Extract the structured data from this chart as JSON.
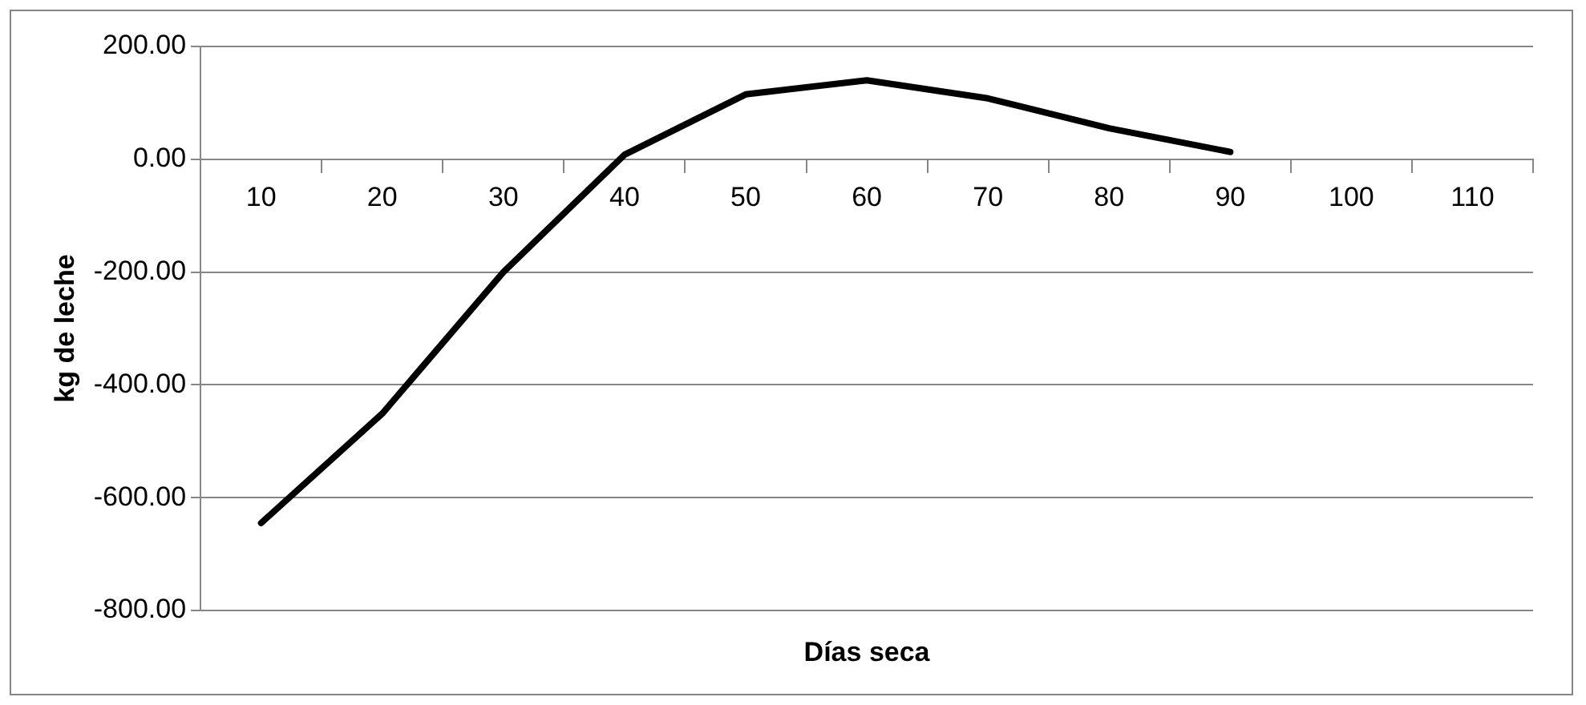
{
  "chart_data": {
    "type": "line",
    "xlabel": "Días seca",
    "ylabel": "kg de leche",
    "categories": [
      "10",
      "20",
      "30",
      "40",
      "50",
      "60",
      "70",
      "80",
      "90",
      "100",
      "110"
    ],
    "series": [
      {
        "color": "#000000",
        "values": [
          -645,
          -451,
          -200,
          8,
          115,
          140,
          108,
          55,
          13,
          null,
          null
        ]
      }
    ],
    "ylim": [
      -800,
      200
    ],
    "yticks": [
      {
        "value": -800,
        "label": "-800.00"
      },
      {
        "value": -600,
        "label": "-600.00"
      },
      {
        "value": -400,
        "label": "-400.00"
      },
      {
        "value": -200,
        "label": "-200.00"
      },
      {
        "value": 0,
        "label": "0.00"
      },
      {
        "value": 200,
        "label": "200.00"
      }
    ],
    "grid": "y",
    "legend": false,
    "marker": "none",
    "line_style": "solid"
  }
}
